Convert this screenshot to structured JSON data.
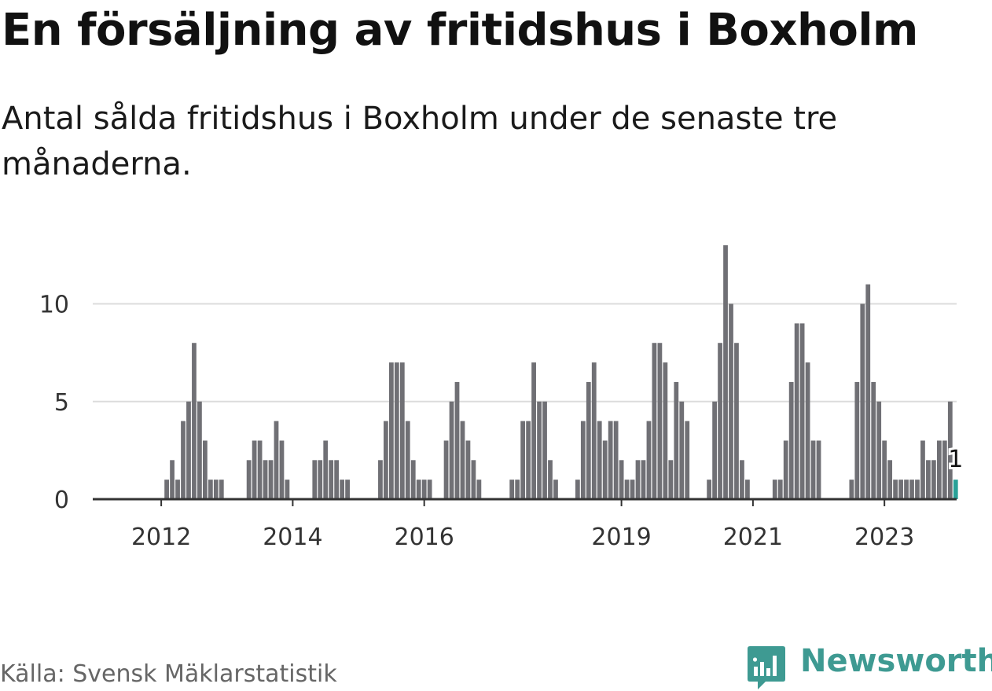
{
  "header": {
    "title": "En försäljning av fritidshus i Boxholm",
    "subtitle": "Antal sålda fritidshus i Boxholm under de senaste tre månaderna."
  },
  "footer": {
    "source": "Källa: Svensk Mäklarstatistik",
    "logo_text": "Newsworthy"
  },
  "colors": {
    "bar": "#707075",
    "highlight": "#2aa198",
    "grid": "#dcdcdc",
    "axis": "#333333",
    "logo": "#3e9a92"
  },
  "chart_data": {
    "type": "bar",
    "title": "En försäljning av fritidshus i Boxholm",
    "subtitle": "Antal sålda fritidshus i Boxholm under de senaste tre månaderna.",
    "xlabel": "",
    "ylabel": "",
    "ylim": [
      0,
      13
    ],
    "yticks": [
      0,
      5,
      10
    ],
    "grid": true,
    "x_start": "2011-01",
    "frequency": "monthly",
    "xtick_labels": [
      {
        "month": "2012-01",
        "label": "2012"
      },
      {
        "month": "2014-01",
        "label": "2014"
      },
      {
        "month": "2016-01",
        "label": "2016"
      },
      {
        "month": "2019-01",
        "label": "2019"
      },
      {
        "month": "2021-01",
        "label": "2021"
      },
      {
        "month": "2023-01",
        "label": "2023"
      }
    ],
    "values": [
      0,
      0,
      0,
      0,
      0,
      0,
      0,
      0,
      0,
      0,
      0,
      0,
      0,
      1,
      2,
      1,
      4,
      5,
      8,
      5,
      3,
      1,
      1,
      1,
      0,
      0,
      0,
      0,
      2,
      3,
      3,
      2,
      2,
      4,
      3,
      1,
      0,
      0,
      0,
      0,
      2,
      2,
      3,
      2,
      2,
      1,
      1,
      0,
      0,
      0,
      0,
      0,
      2,
      4,
      7,
      7,
      7,
      4,
      2,
      1,
      1,
      1,
      0,
      0,
      3,
      5,
      6,
      4,
      3,
      2,
      1,
      0,
      0,
      0,
      0,
      0,
      1,
      1,
      4,
      4,
      7,
      5,
      5,
      2,
      1,
      0,
      0,
      0,
      1,
      4,
      6,
      7,
      4,
      3,
      4,
      4,
      2,
      1,
      1,
      2,
      2,
      4,
      8,
      8,
      7,
      2,
      6,
      5,
      4,
      0,
      0,
      0,
      1,
      5,
      8,
      13,
      10,
      8,
      2,
      1,
      0,
      0,
      0,
      0,
      1,
      1,
      3,
      6,
      9,
      9,
      7,
      3,
      3,
      0,
      0,
      0,
      0,
      0,
      1,
      6,
      10,
      11,
      6,
      5,
      3,
      2,
      1,
      1,
      1,
      1,
      1,
      3,
      2,
      2,
      3,
      3,
      5,
      1
    ],
    "highlight": {
      "month": "2024-02",
      "value": 1,
      "label": "1"
    }
  }
}
